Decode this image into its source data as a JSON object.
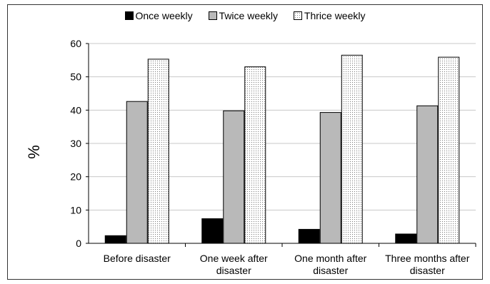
{
  "chart_data": {
    "type": "bar",
    "ylabel": "%",
    "ylim": [
      0,
      60
    ],
    "yticks": [
      "0",
      "10",
      "20",
      "30",
      "40",
      "50",
      "60"
    ],
    "grid": true,
    "legend_placement": "top",
    "categories": [
      [
        "Before disaster"
      ],
      [
        "One week after",
        "disaster"
      ],
      [
        "One month after",
        "disaster"
      ],
      [
        "Three months after",
        "disaster"
      ]
    ],
    "series": [
      {
        "name": "Once weekly",
        "color": "#000000",
        "values": [
          2.3,
          7.4,
          4.2,
          2.8
        ]
      },
      {
        "name": "Twice weekly",
        "color": "#b9b9b9",
        "values": [
          42.6,
          39.8,
          39.3,
          41.3
        ]
      },
      {
        "name": "Thrice weekly",
        "color": "#ffffff",
        "values": [
          55.3,
          53.0,
          56.5,
          55.9
        ]
      }
    ]
  }
}
